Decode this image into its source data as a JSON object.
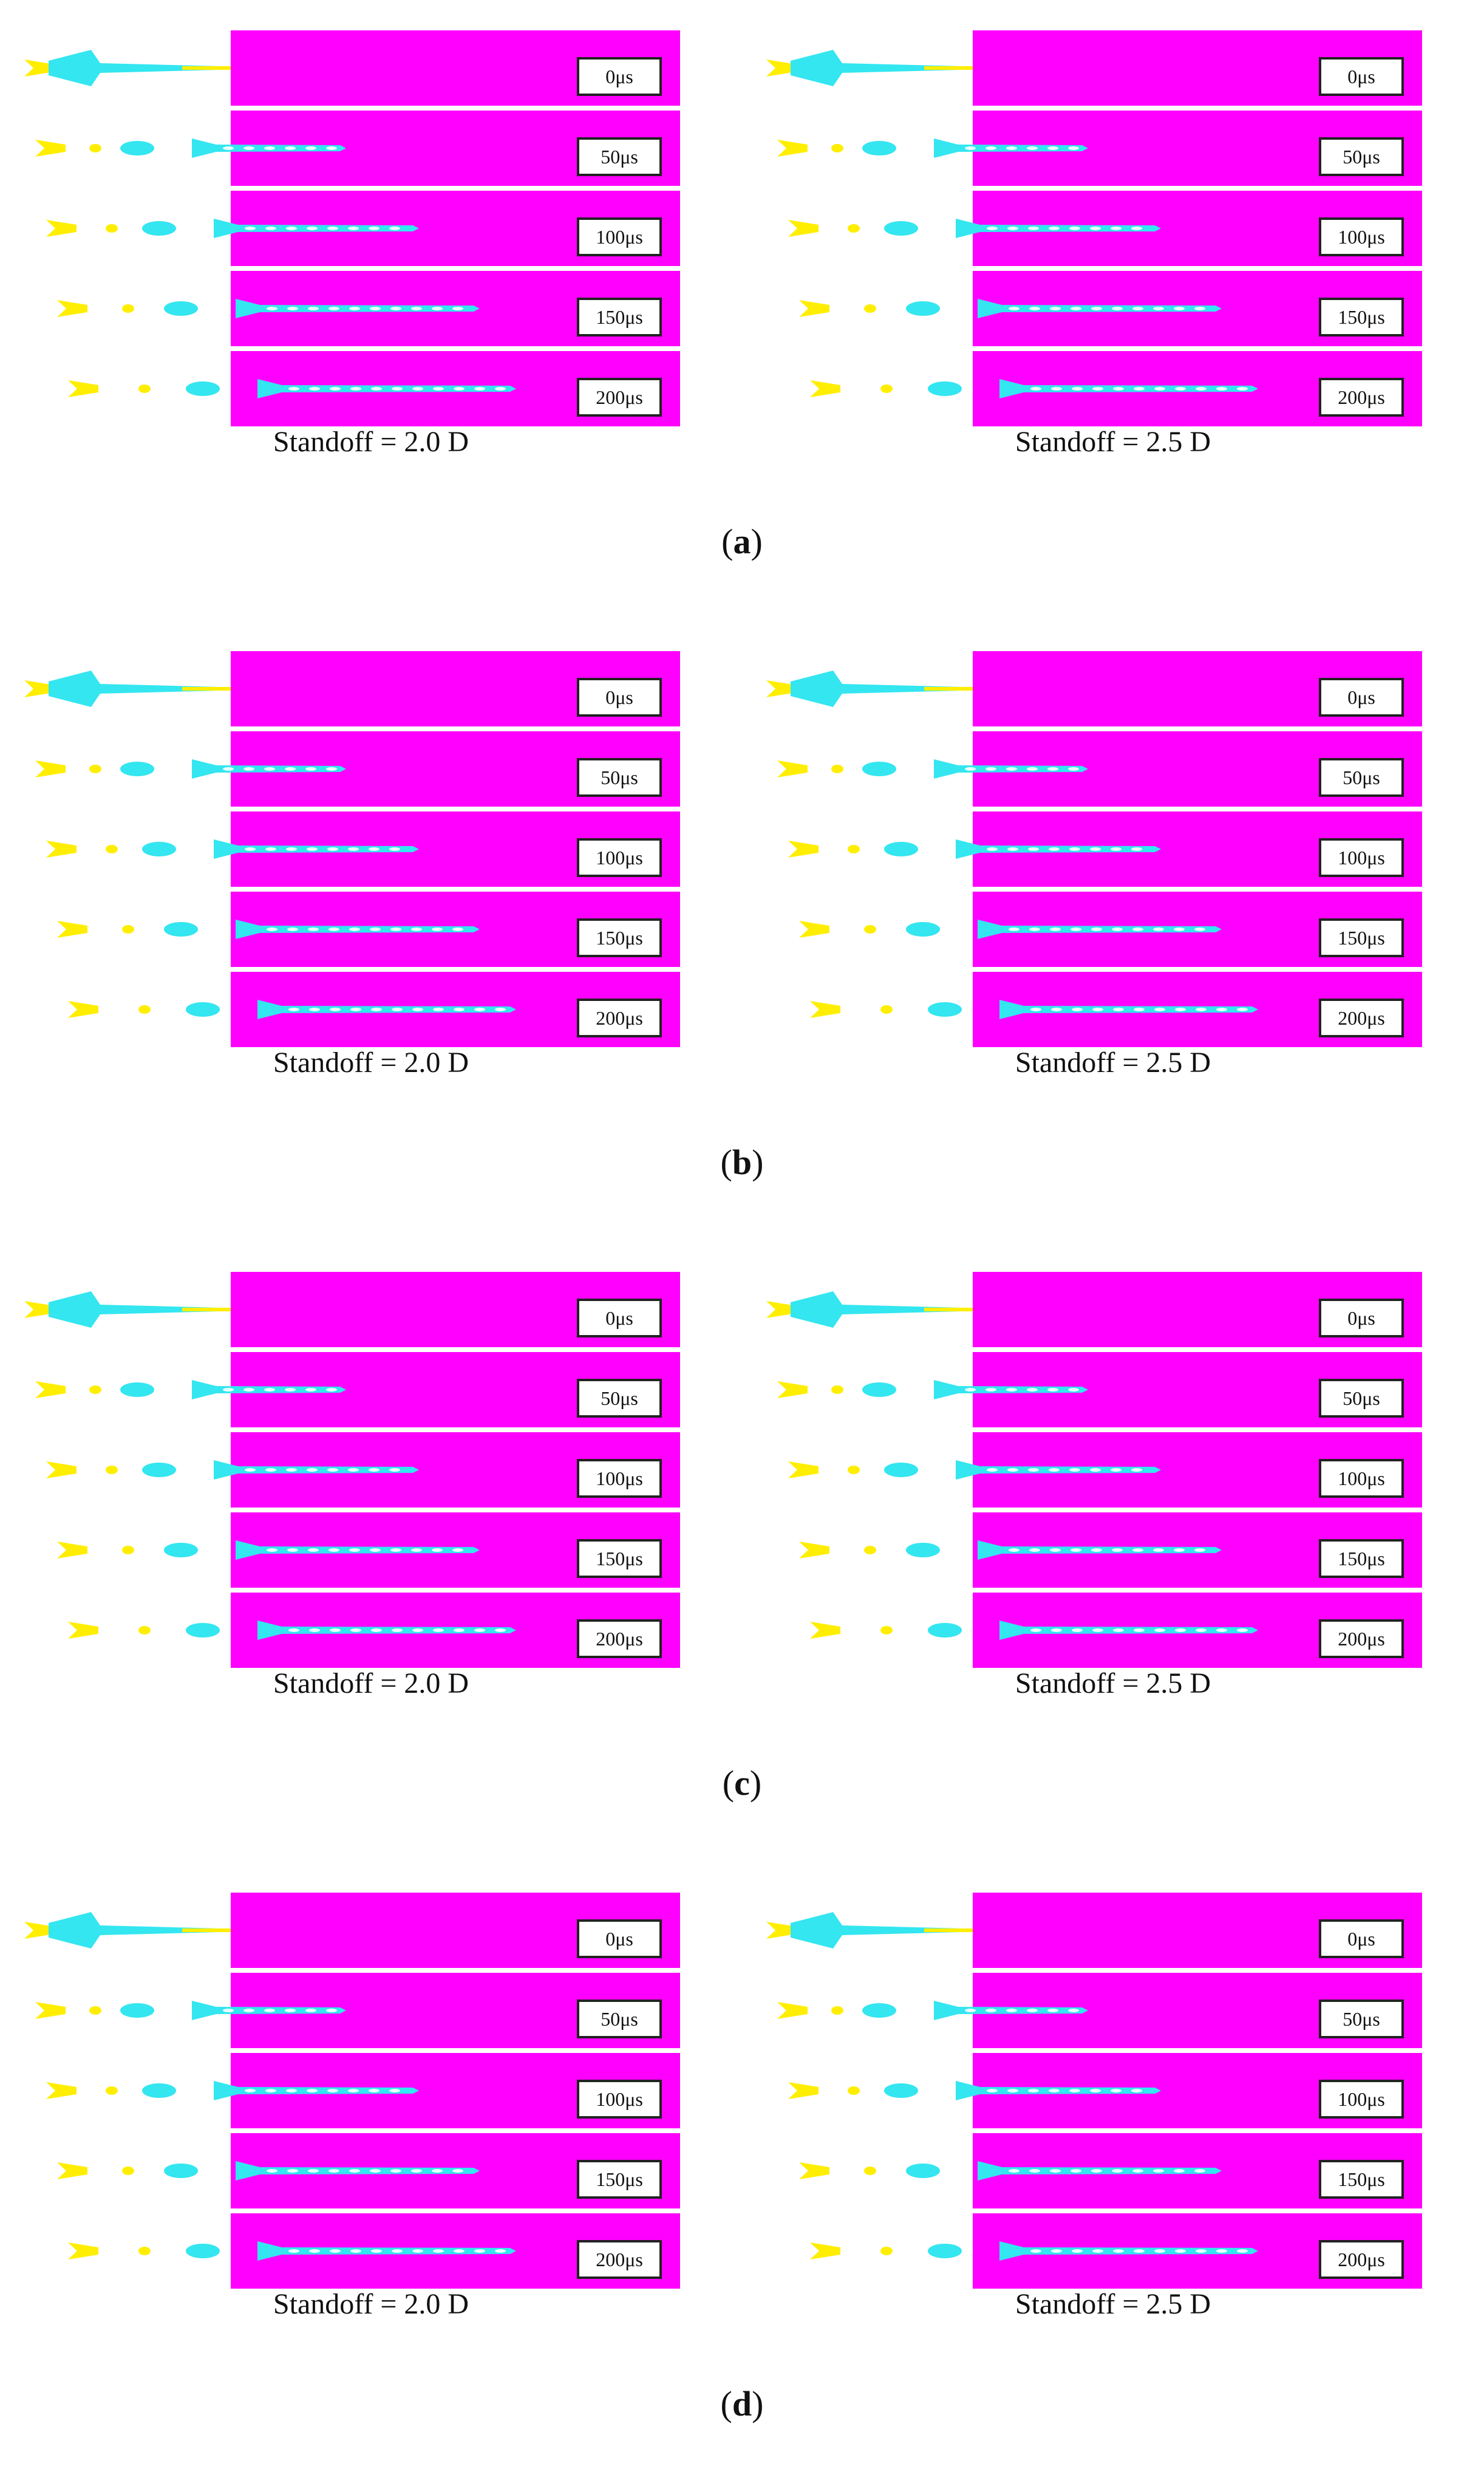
{
  "panels": [
    {
      "label": "a",
      "sims": [
        {
          "caption": "Standoff = 2.0 D",
          "times": [
            "0μs",
            "50μs",
            "100μs",
            "150μs",
            "200μs"
          ]
        },
        {
          "caption": "Standoff = 2.5 D",
          "times": [
            "0μs",
            "50μs",
            "100μs",
            "150μs",
            "200μs"
          ]
        }
      ]
    },
    {
      "label": "b",
      "sims": [
        {
          "caption": "Standoff = 2.0 D",
          "times": [
            "0μs",
            "50μs",
            "100μs",
            "150μs",
            "200μs"
          ]
        },
        {
          "caption": "Standoff = 2.5 D",
          "times": [
            "0μs",
            "50μs",
            "100μs",
            "150μs",
            "200μs"
          ]
        }
      ]
    },
    {
      "label": "c",
      "sims": [
        {
          "caption": "Standoff = 2.0 D",
          "times": [
            "0μs",
            "50μs",
            "100μs",
            "150μs",
            "200μs"
          ]
        },
        {
          "caption": "Standoff = 2.5 D",
          "times": [
            "0μs",
            "50μs",
            "100μs",
            "150μs",
            "200μs"
          ]
        }
      ]
    },
    {
      "label": "d",
      "sims": [
        {
          "caption": "Standoff = 2.0 D",
          "times": [
            "0μs",
            "50μs",
            "100μs",
            "150μs",
            "200μs"
          ]
        },
        {
          "caption": "Standoff = 2.5 D",
          "times": [
            "0μs",
            "50μs",
            "100μs",
            "150μs",
            "200μs"
          ]
        }
      ]
    }
  ],
  "colors": {
    "target": "#ff00ff",
    "jet": "#33e6f0",
    "slug": "#ffee00",
    "outline": "#222222"
  }
}
